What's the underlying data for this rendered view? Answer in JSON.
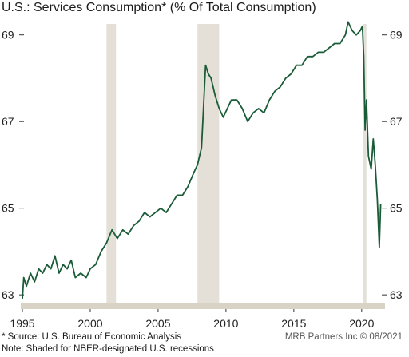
{
  "title": "U.S.: Services Consumption* (% Of Total Consumption)",
  "source_note": "* Source: U.S. Bureau of Economic Analysis",
  "recession_note": "Note: Shaded for NBER-designated U.S. recessions",
  "credit": "MRB Partners Inc © 08/2021",
  "colors": {
    "line": "#1a5c38",
    "recession": "#e4e0d8",
    "axis": "#d9d3c6",
    "grid": "#e8e8e8"
  },
  "chart_data": {
    "type": "line",
    "title": "U.S.: Services Consumption* (% Of Total Consumption)",
    "xlabel": "",
    "ylabel": "",
    "xlim": [
      1995,
      2021.6
    ],
    "ylim": [
      62.8,
      69.4
    ],
    "x_ticks": [
      1995,
      2000,
      2005,
      2010,
      2015,
      2020
    ],
    "x_tick_labels": [
      "1995",
      "2000",
      "2005",
      "2010",
      "2015",
      "2020"
    ],
    "y_ticks": [
      63,
      65,
      67,
      69
    ],
    "y_tick_labels": [
      "63",
      "65",
      "67",
      "69"
    ],
    "y_axis_both_sides": true,
    "grid": false,
    "recessions": [
      [
        2001.2,
        2001.9
      ],
      [
        2007.9,
        2009.5
      ],
      [
        2020.1,
        2020.35
      ]
    ],
    "series": [
      {
        "x": [
          1995.0,
          1995.1,
          1995.3,
          1995.6,
          1995.9,
          1996.2,
          1996.5,
          1996.8,
          1997.1,
          1997.4,
          1997.7,
          1998.0,
          1998.3,
          1998.6,
          1998.9,
          1999.3,
          1999.7,
          2000.0,
          2000.4,
          2000.8,
          2001.2,
          2001.6,
          2002.0,
          2002.4,
          2002.8,
          2003.2,
          2003.6,
          2004.0,
          2004.4,
          2004.8,
          2005.2,
          2005.6,
          2006.0,
          2006.4,
          2006.8,
          2007.2,
          2007.6,
          2007.9,
          2008.2,
          2008.5,
          2008.7,
          2008.9,
          2009.2,
          2009.5,
          2009.8,
          2010.1,
          2010.4,
          2010.8,
          2011.2,
          2011.6,
          2012.0,
          2012.4,
          2012.8,
          2013.2,
          2013.6,
          2014.0,
          2014.4,
          2014.8,
          2015.2,
          2015.6,
          2016.0,
          2016.4,
          2016.8,
          2017.2,
          2017.6,
          2018.0,
          2018.4,
          2018.8,
          2019.0,
          2019.3,
          2019.6,
          2019.9,
          2020.05,
          2020.15,
          2020.25,
          2020.35,
          2020.5,
          2020.7,
          2020.85,
          2021.0,
          2021.15,
          2021.3,
          2021.4
        ],
        "y": [
          62.9,
          63.4,
          63.2,
          63.5,
          63.3,
          63.6,
          63.5,
          63.7,
          63.6,
          63.9,
          63.5,
          63.7,
          63.6,
          63.8,
          63.4,
          63.5,
          63.4,
          63.6,
          63.7,
          64.0,
          64.2,
          64.5,
          64.3,
          64.5,
          64.4,
          64.6,
          64.7,
          64.9,
          64.8,
          64.9,
          65.0,
          64.9,
          65.1,
          65.3,
          65.3,
          65.5,
          65.8,
          66.0,
          66.4,
          68.3,
          68.1,
          68.0,
          67.6,
          67.3,
          67.1,
          67.3,
          67.5,
          67.5,
          67.3,
          67.0,
          67.2,
          67.3,
          67.2,
          67.5,
          67.7,
          67.8,
          68.0,
          68.1,
          68.3,
          68.3,
          68.5,
          68.5,
          68.6,
          68.6,
          68.7,
          68.8,
          68.8,
          69.0,
          69.3,
          69.1,
          69.0,
          69.1,
          69.2,
          68.5,
          66.8,
          67.5,
          66.2,
          65.9,
          66.6,
          66.0,
          65.2,
          64.1,
          65.1
        ]
      }
    ]
  }
}
